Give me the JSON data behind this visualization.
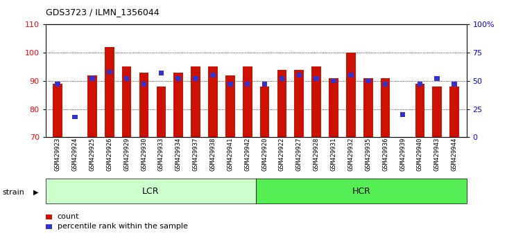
{
  "title": "GDS3723 / ILMN_1356044",
  "samples": [
    "GSM429923",
    "GSM429924",
    "GSM429925",
    "GSM429926",
    "GSM429929",
    "GSM429930",
    "GSM429933",
    "GSM429934",
    "GSM429937",
    "GSM429938",
    "GSM429941",
    "GSM429942",
    "GSM429920",
    "GSM429922",
    "GSM429927",
    "GSM429928",
    "GSM429931",
    "GSM429932",
    "GSM429935",
    "GSM429936",
    "GSM429939",
    "GSM429940",
    "GSM429943",
    "GSM429944"
  ],
  "red_values": [
    89,
    70,
    92,
    102,
    95,
    93,
    88,
    93,
    95,
    95,
    92,
    95,
    88,
    94,
    94,
    95,
    91,
    100,
    91,
    91,
    70,
    89,
    88,
    88
  ],
  "blue_values": [
    47,
    18,
    52,
    58,
    52,
    47,
    57,
    52,
    52,
    55,
    47,
    47,
    47,
    52,
    55,
    52,
    50,
    55,
    50,
    47,
    20,
    47,
    52,
    47
  ],
  "lcr_count": 12,
  "hcr_count": 12,
  "lcr_label": "LCR",
  "hcr_label": "HCR",
  "strain_label": "strain",
  "ylim_left": [
    70,
    110
  ],
  "ylim_right": [
    0,
    100
  ],
  "yticks_left": [
    70,
    80,
    90,
    100,
    110
  ],
  "yticks_right": [
    0,
    25,
    50,
    75,
    100
  ],
  "ytick_labels_right": [
    "0",
    "25",
    "50",
    "75",
    "100%"
  ],
  "red_color": "#cc1100",
  "blue_color": "#3333cc",
  "lcr_bg": "#ccffcc",
  "hcr_bg": "#55ee55",
  "bar_bottom": 70,
  "legend_count": "count",
  "legend_pct": "percentile rank within the sample",
  "bar_width": 0.55
}
